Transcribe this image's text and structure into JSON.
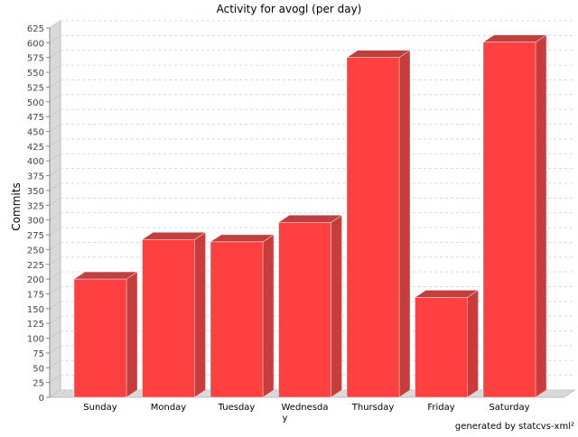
{
  "chart_data": {
    "type": "bar",
    "title": "Activity for avogl (per day)",
    "xlabel": "",
    "ylabel": "Commits",
    "categories": [
      "Sunday",
      "Monday",
      "Tuesday",
      "Wednesday",
      "Thursday",
      "Friday",
      "Saturday"
    ],
    "series": [
      {
        "values": [
          200,
          267,
          263,
          296,
          575,
          169,
          601
        ]
      }
    ],
    "ylim": [
      0,
      625
    ],
    "yticks": [
      0,
      25,
      50,
      75,
      100,
      125,
      150,
      175,
      200,
      225,
      250,
      275,
      300,
      325,
      350,
      375,
      400,
      425,
      450,
      475,
      500,
      525,
      550,
      575,
      600,
      625
    ],
    "grid": true,
    "legend": "none",
    "three_d": true,
    "colors": {
      "bar_front": "#ff4040",
      "bar_side": "#c83c3c",
      "bar_top": "#c04040",
      "wall": "#d9d9d9",
      "grid": "#d8d8d8"
    }
  },
  "footer": "generated by statcvs-xml²"
}
